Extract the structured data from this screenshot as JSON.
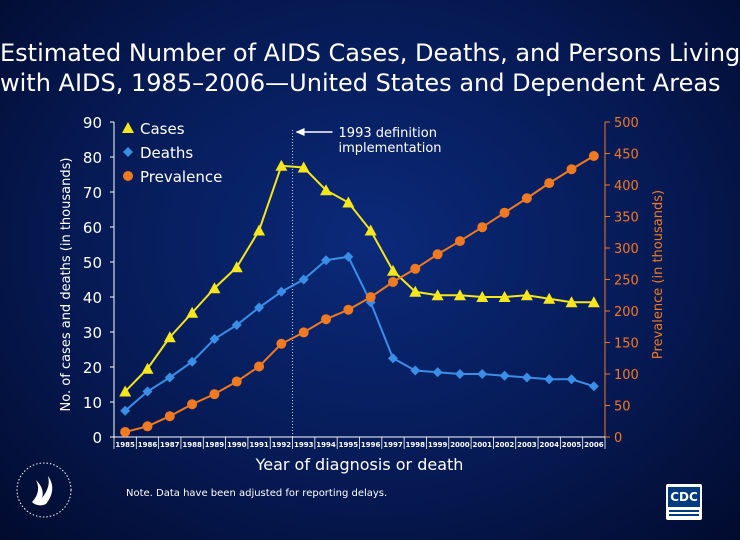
{
  "title": {
    "line1": "Estimated Number of AIDS Cases, Deaths, and Persons Living",
    "line2": "with AIDS, 1985–2006—United States and Dependent Areas"
  },
  "note": "Note. Data have been adjusted for reporting delays.",
  "cdc_logo": "CDC",
  "chart_data": {
    "type": "line",
    "xlabel": "Year of diagnosis or death",
    "ylabel_left": "No. of cases and deaths (in thousands)",
    "ylabel_right": "Prevalence (in thousands)",
    "x": [
      "1985",
      "1986",
      "1987",
      "1988",
      "1989",
      "1990",
      "1991",
      "1992",
      "1993",
      "1994",
      "1995",
      "1996",
      "1997",
      "1998",
      "1999",
      "2000",
      "2001",
      "2002",
      "2003",
      "2004",
      "2005",
      "2006"
    ],
    "ylim_left": [
      0,
      90
    ],
    "yticks_left": [
      0,
      10,
      20,
      30,
      40,
      50,
      60,
      70,
      80,
      90
    ],
    "ylim_right": [
      0,
      500
    ],
    "yticks_right": [
      0,
      50,
      100,
      150,
      200,
      250,
      300,
      350,
      400,
      450,
      500
    ],
    "annotation": {
      "line1": "1993 definition",
      "line2": "implementation",
      "x": "1993"
    },
    "legend_position": "top-left",
    "series": [
      {
        "name": "Cases",
        "axis": "left",
        "color": "#f5e61e",
        "marker": "triangle",
        "values": [
          13,
          19.5,
          28.5,
          35.5,
          42.5,
          48.5,
          59,
          77.5,
          77,
          70.5,
          67,
          59,
          47.5,
          41.5,
          40.5,
          40.5,
          40,
          40,
          40.5,
          39.5,
          38.5,
          38.5
        ]
      },
      {
        "name": "Deaths",
        "axis": "left",
        "color": "#3a8ee6",
        "marker": "diamond",
        "values": [
          7.5,
          13,
          17,
          21.5,
          28,
          32,
          37,
          41.5,
          45,
          50.5,
          51.5,
          38.5,
          22.5,
          19,
          18.5,
          18,
          18,
          17.5,
          17,
          16.5,
          16.5,
          14.5
        ]
      },
      {
        "name": "Prevalence",
        "axis": "right",
        "color": "#f07a22",
        "marker": "circle",
        "values": [
          8,
          17,
          33,
          52,
          68,
          88,
          112,
          148,
          166,
          187,
          202,
          222,
          246,
          267,
          290,
          311,
          333,
          356,
          379,
          403,
          425,
          446
        ]
      }
    ]
  }
}
